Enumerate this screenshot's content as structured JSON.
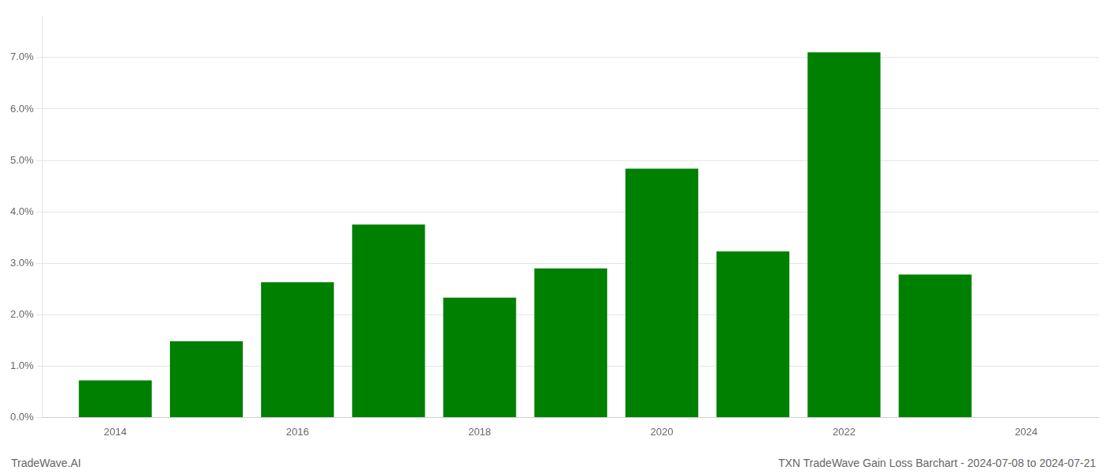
{
  "chart_data": {
    "type": "bar",
    "title": "TXN TradeWave Gain Loss Barchart - 2024-07-08 to 2024-07-21",
    "annotations": [
      "TradeWave.AI"
    ],
    "x": [
      2014,
      2015,
      2016,
      2017,
      2018,
      2019,
      2020,
      2021,
      2022,
      2023
    ],
    "values": [
      0.0072,
      0.0148,
      0.0263,
      0.0375,
      0.0233,
      0.029,
      0.0484,
      0.0323,
      0.071,
      0.0278
    ],
    "color": "#008000",
    "xlim": [
      2013.2,
      2024.8
    ],
    "xticks": [
      2014,
      2016,
      2018,
      2020,
      2022,
      2024
    ],
    "ylim": [
      0,
      0.078
    ],
    "yticks": [
      {
        "value": 0.0,
        "label": "0.0%"
      },
      {
        "value": 0.01,
        "label": "1.0%"
      },
      {
        "value": 0.02,
        "label": "2.0%"
      },
      {
        "value": 0.03,
        "label": "3.0%"
      },
      {
        "value": 0.04,
        "label": "4.0%"
      },
      {
        "value": 0.05,
        "label": "5.0%"
      },
      {
        "value": 0.06,
        "label": "6.0%"
      },
      {
        "value": 0.07,
        "label": "7.0%"
      }
    ],
    "grid": true
  }
}
